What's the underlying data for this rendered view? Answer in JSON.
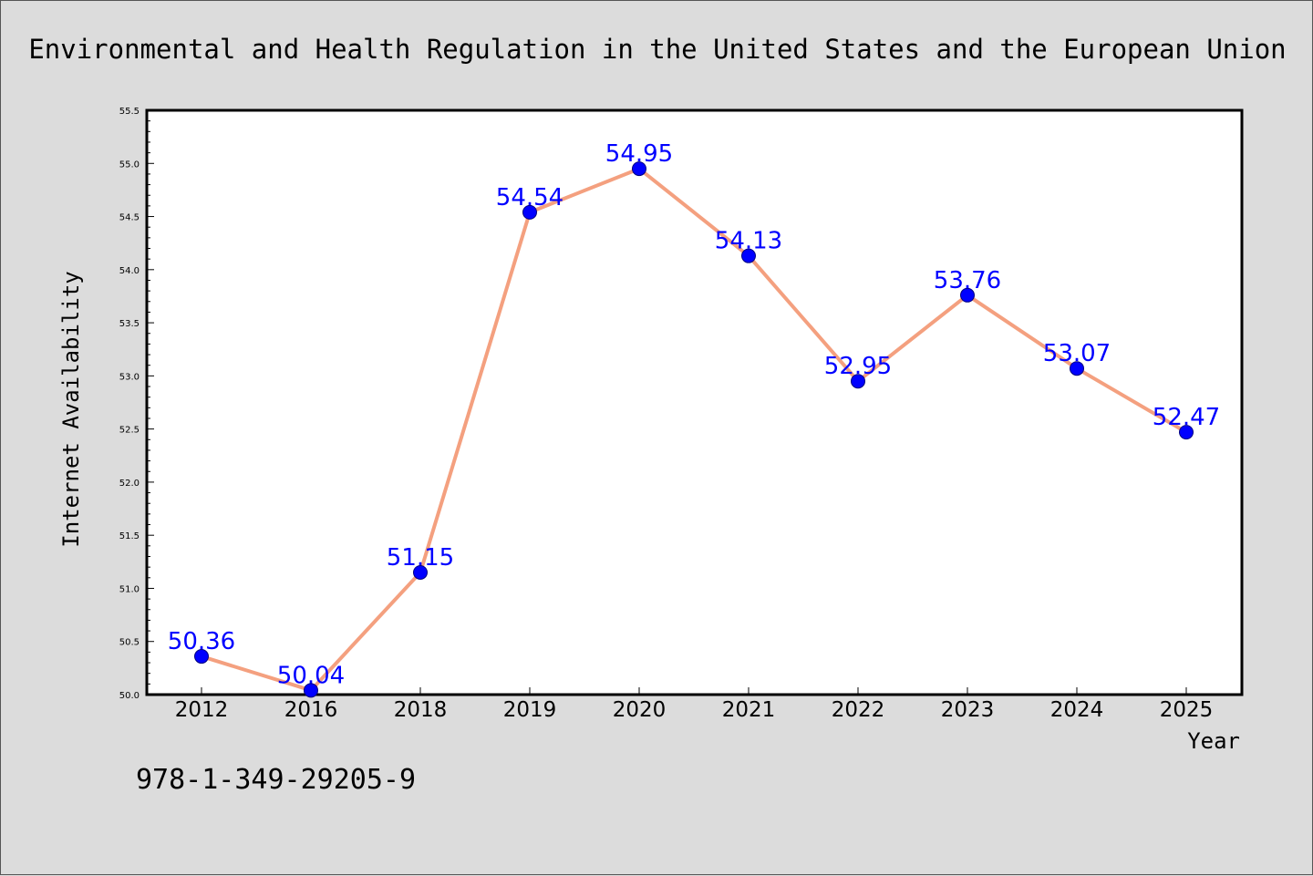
{
  "colors": {
    "background": "#dcdcdc",
    "plot_background": "#ffffff",
    "line": "#f4a07f",
    "marker": "#0000ff",
    "data_label": "#0000ff"
  },
  "isbn": "978-1-349-29205-9",
  "chart_data": {
    "type": "line",
    "title": "Environmental and Health Regulation in the United States and the European Union",
    "xlabel": "Year",
    "ylabel": "Internet Availability",
    "categories": [
      "2012",
      "2016",
      "2018",
      "2019",
      "2020",
      "2021",
      "2022",
      "2023",
      "2024",
      "2025"
    ],
    "series": [
      {
        "values": [
          50.36,
          50.04,
          51.15,
          54.54,
          54.95,
          54.13,
          52.95,
          53.76,
          53.07,
          52.47
        ],
        "labels": [
          "50.36",
          "50.04",
          "51.15",
          "54.54",
          "54.95",
          "54.13",
          "52.95",
          "53.76",
          "53.07",
          "52.47"
        ]
      }
    ],
    "ylim": [
      50.0,
      55.5
    ],
    "yticks": [
      "50.0",
      "50.5",
      "51.0",
      "51.5",
      "52.0",
      "52.5",
      "53.0",
      "53.5",
      "54.0",
      "54.5",
      "55.0",
      "55.5"
    ],
    "grid": false,
    "legend": "none"
  }
}
